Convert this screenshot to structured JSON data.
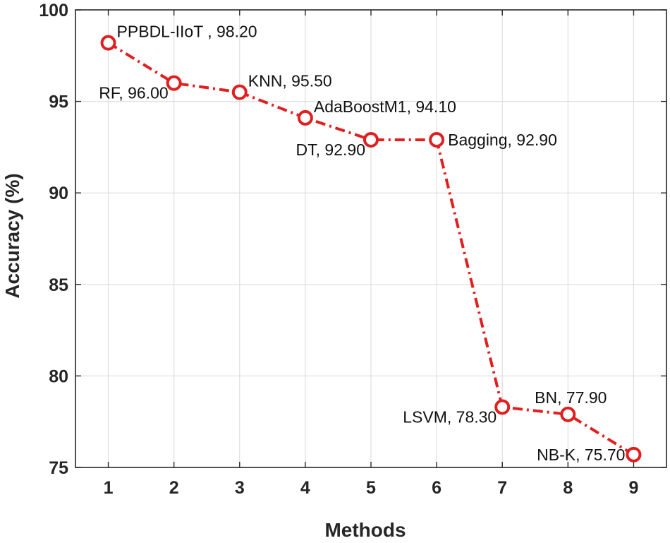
{
  "chart_data": {
    "type": "line",
    "title": "",
    "xlabel": "Methods",
    "ylabel": "Accuracy (%)",
    "x": [
      1,
      2,
      3,
      4,
      5,
      6,
      7,
      8,
      9
    ],
    "xlim": [
      0.5,
      9.5
    ],
    "ylim": [
      75,
      100
    ],
    "xticks": [
      1,
      2,
      3,
      4,
      5,
      6,
      7,
      8,
      9
    ],
    "yticks": [
      75,
      80,
      85,
      90,
      95,
      100
    ],
    "grid": true,
    "series": [
      {
        "name": "Accuracy",
        "color": "#e02020",
        "line_style": "dash-dot",
        "marker": "circle",
        "values": [
          98.2,
          96.0,
          95.5,
          94.1,
          92.9,
          92.9,
          78.3,
          77.9,
          75.7
        ]
      }
    ],
    "annotations": [
      {
        "text": "PPBDL-IIoT , 98.20",
        "x": 1,
        "y": 98.2,
        "anchor": "upper-right"
      },
      {
        "text": "RF, 96.00",
        "x": 2,
        "y": 96.0,
        "anchor": "lower-left"
      },
      {
        "text": "KNN, 95.50",
        "x": 3,
        "y": 95.5,
        "anchor": "upper-right"
      },
      {
        "text": "AdaBoostM1, 94.10",
        "x": 4,
        "y": 94.1,
        "anchor": "upper-right"
      },
      {
        "text": "DT, 92.90",
        "x": 5,
        "y": 92.9,
        "anchor": "lower-left"
      },
      {
        "text": "Bagging, 92.90",
        "x": 6,
        "y": 92.9,
        "anchor": "right"
      },
      {
        "text": "LSVM, 78.30",
        "x": 7,
        "y": 78.3,
        "anchor": "lower-left"
      },
      {
        "text": "BN, 77.90",
        "x": 8,
        "y": 77.9,
        "anchor": "upper-center"
      },
      {
        "text": "NB-K, 75.70",
        "x": 9,
        "y": 75.7,
        "anchor": "left"
      }
    ]
  }
}
